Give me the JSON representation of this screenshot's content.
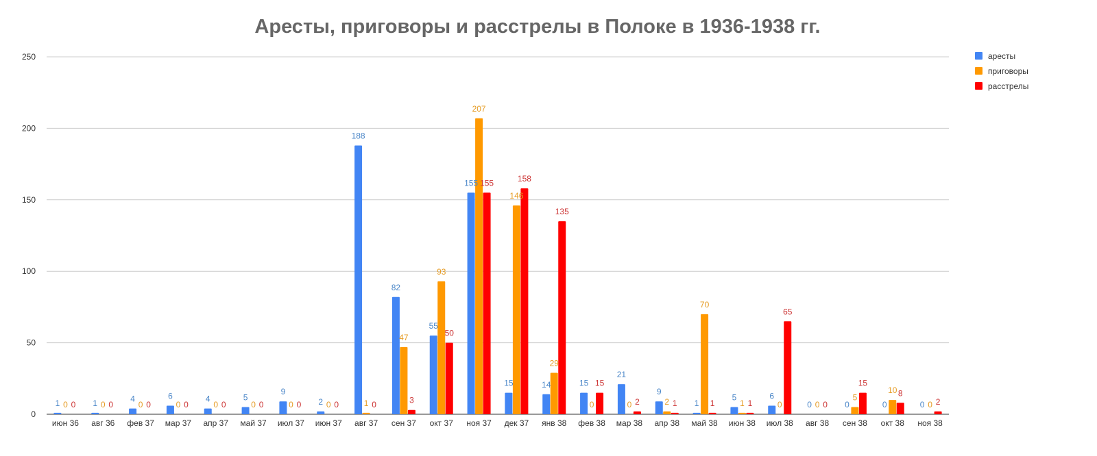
{
  "chart_data": {
    "type": "bar",
    "title": "Аресты, приговоры и расстрелы в Полоке в 1936-1938 гг.",
    "xlabel": "",
    "ylabel": "",
    "ylim": [
      0,
      250
    ],
    "yticks": [
      0,
      50,
      100,
      150,
      200,
      250
    ],
    "grid": true,
    "legend_position": "top-right",
    "categories": [
      "июн 36",
      "авг 36",
      "фев 37",
      "мар 37",
      "апр 37",
      "май 37",
      "июл 37",
      "июн 37",
      "авг 37",
      "сен 37",
      "окт 37",
      "ноя 37",
      "дек 37",
      "янв 38",
      "фев 38",
      "мар 38",
      "апр 38",
      "май 38",
      "июн 38",
      "июл 38",
      "авг 38",
      "сен 38",
      "окт 38",
      "ноя 38"
    ],
    "series": [
      {
        "name": "аресты",
        "color": "#4285f4",
        "label_color": "#4a86c8",
        "values": [
          1,
          1,
          4,
          6,
          4,
          5,
          9,
          2,
          188,
          82,
          55,
          155,
          15,
          14,
          15,
          21,
          9,
          1,
          5,
          6,
          0,
          0,
          0,
          0
        ]
      },
      {
        "name": "приговоры",
        "color": "#ff9900",
        "label_color": "#e69c24",
        "values": [
          0,
          0,
          0,
          0,
          0,
          0,
          0,
          0,
          1,
          47,
          93,
          207,
          146,
          29,
          0,
          0,
          2,
          70,
          1,
          0,
          0,
          5,
          10,
          0
        ]
      },
      {
        "name": "расстрелы",
        "color": "#ff0000",
        "label_color": "#cc3333",
        "values": [
          0,
          0,
          0,
          0,
          0,
          0,
          0,
          0,
          0,
          3,
          50,
          155,
          158,
          135,
          15,
          2,
          1,
          1,
          1,
          65,
          0,
          15,
          8,
          2
        ]
      }
    ]
  }
}
